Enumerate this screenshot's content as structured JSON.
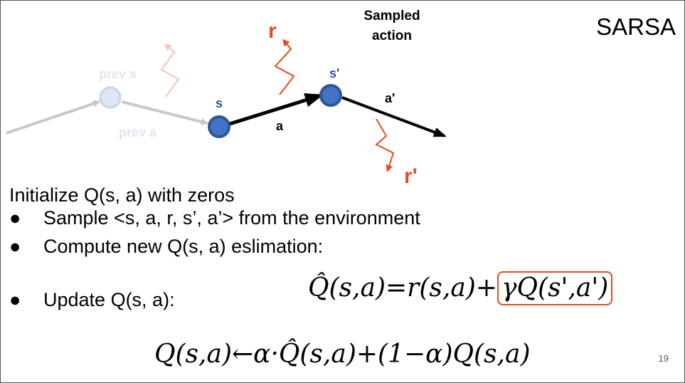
{
  "slide": {
    "title": "SARSA",
    "page_number": "19"
  },
  "diagram": {
    "sampled_action_line1": "Sampled",
    "sampled_action_line2": "action",
    "labels": {
      "prev_s": "prev s",
      "prev_a": "prev a",
      "s": "s",
      "a": "a",
      "s_prime": "s'",
      "a_prime": "a'",
      "r": "r",
      "r_prime": "r'"
    },
    "colors": {
      "state_fill": "#4472c4",
      "state_stroke": "#2e5597",
      "faded_state_fill": "#dde6f3",
      "faded_state_stroke": "#c5d3e8",
      "faded_arrow": "#c8c8c8",
      "reward": "#e84a1c",
      "faded_reward": "#f8c3b3",
      "label_blue": "#2e5597",
      "label_faded": "#dde6f3"
    }
  },
  "content": {
    "init_line": "Initialize Q(s, a) with zeros",
    "bullets": [
      "Sample <s, a, r, s’, a’> from the environment",
      "Compute new Q(s, a) eslimation:",
      "Update Q(s, a):"
    ],
    "formula1_left": "Q̂(s,a)=r(s,a)+",
    "formula1_boxed": "γQ(s',a')",
    "formula2": "Q(s,a)←α·Q̂(s,a)+(1−α)Q(s,a)"
  }
}
